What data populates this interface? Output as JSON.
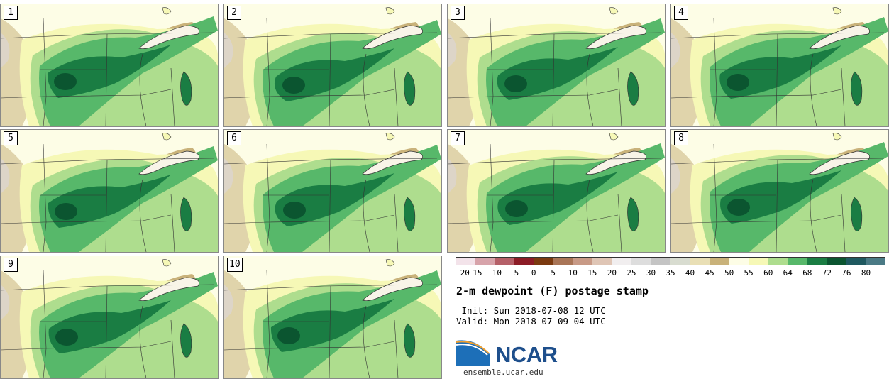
{
  "panels": [
    {
      "label": "1"
    },
    {
      "label": "2"
    },
    {
      "label": "3"
    },
    {
      "label": "4"
    },
    {
      "label": "5"
    },
    {
      "label": "6"
    },
    {
      "label": "7"
    },
    {
      "label": "8"
    },
    {
      "label": "9"
    },
    {
      "label": "10"
    }
  ],
  "colorbar": {
    "ticks": [
      "−20",
      "−15",
      "−10",
      "−5",
      "0",
      "5",
      "10",
      "15",
      "20",
      "25",
      "30",
      "35",
      "40",
      "45",
      "50",
      "55",
      "60",
      "64",
      "68",
      "72",
      "76",
      "80"
    ],
    "colors": [
      "#f3e3ea",
      "#d7a3aa",
      "#b56068",
      "#8c1c26",
      "#7b3a10",
      "#a97557",
      "#c89a86",
      "#dfc5b5",
      "#f1eeef",
      "#dddddd",
      "#c4c4c4",
      "#d8dcd0",
      "#e9dfb5",
      "#c9b27a",
      "#fdfde6",
      "#f6f8b6",
      "#aedd8e",
      "#57b86a",
      "#1a7d43",
      "#0b5530",
      "#1f5960",
      "#4a7a85"
    ]
  },
  "title": "2-m dewpoint (F) postage stamp",
  "init": " Init: Sun 2018-07-08 12 UTC",
  "valid": "Valid: Mon 2018-07-09 04 UTC",
  "logo": {
    "text": "NCAR",
    "site": "ensemble.ucar.edu"
  },
  "colors": {
    "tan": "#c9b27a",
    "pale": "#f6f8b6",
    "light_green": "#aedd8e",
    "green": "#57b86a",
    "dark_green": "#1a7d43",
    "darkest_green": "#0b5530"
  }
}
